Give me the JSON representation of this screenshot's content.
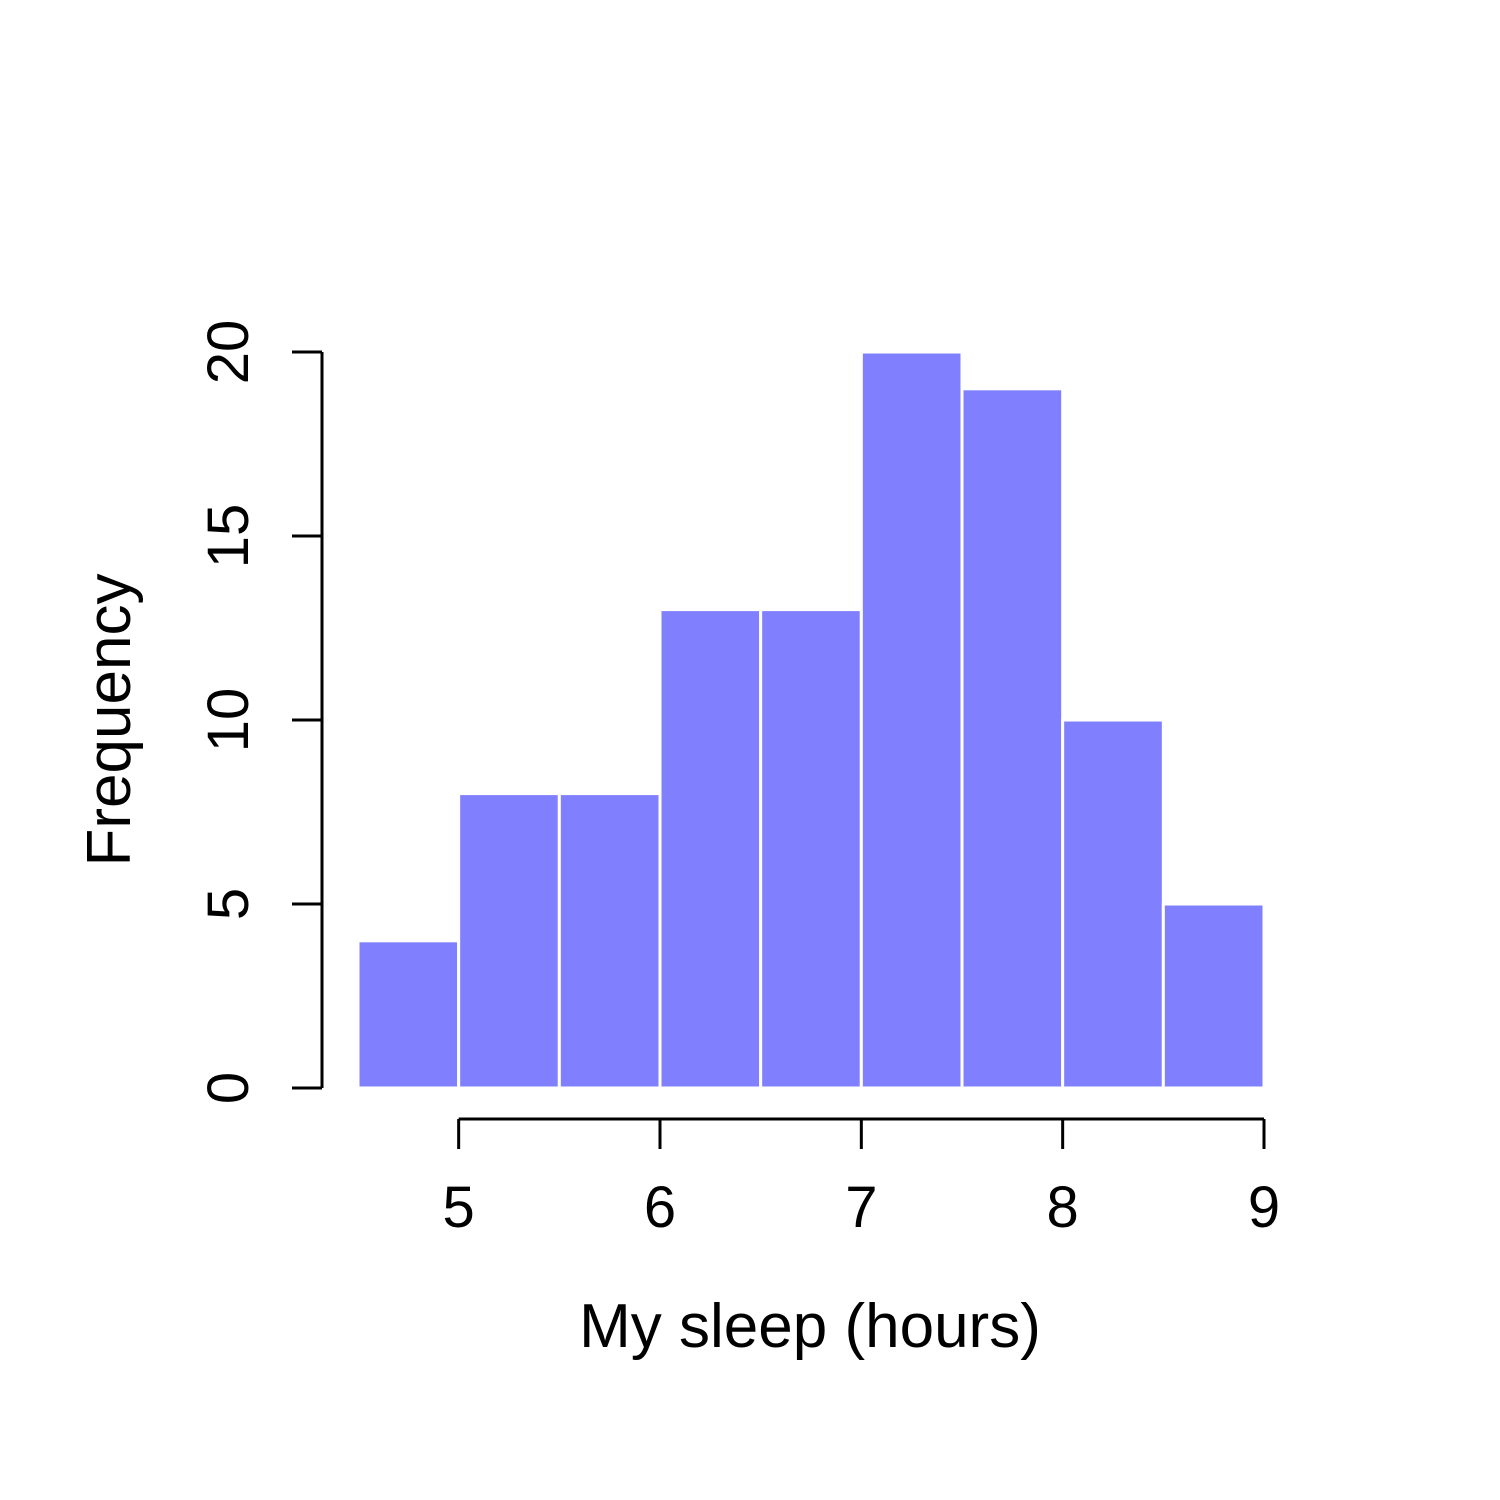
{
  "chart_data": {
    "type": "bar",
    "subtype": "histogram",
    "bins": [
      {
        "x0": 4.5,
        "x1": 5.0,
        "count": 4
      },
      {
        "x0": 5.0,
        "x1": 5.5,
        "count": 8
      },
      {
        "x0": 5.5,
        "x1": 6.0,
        "count": 8
      },
      {
        "x0": 6.0,
        "x1": 6.5,
        "count": 13
      },
      {
        "x0": 6.5,
        "x1": 7.0,
        "count": 13
      },
      {
        "x0": 7.0,
        "x1": 7.5,
        "count": 20
      },
      {
        "x0": 7.5,
        "x1": 8.0,
        "count": 19
      },
      {
        "x0": 8.0,
        "x1": 8.5,
        "count": 10
      },
      {
        "x0": 8.5,
        "x1": 9.0,
        "count": 5
      }
    ],
    "xlabel": "My sleep (hours)",
    "ylabel": "Frequency",
    "xlim": [
      4.5,
      9.0
    ],
    "ylim": [
      0,
      20
    ],
    "xticks": [
      5,
      6,
      7,
      8,
      9
    ],
    "yticks": [
      0,
      5,
      10,
      15,
      20
    ],
    "bar_color": "#8080ff",
    "grid": false
  }
}
